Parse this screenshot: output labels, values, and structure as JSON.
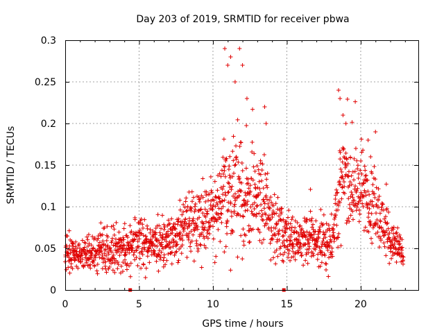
{
  "chart_data": {
    "type": "scatter",
    "title": "Day 203 of 2019, SRMTID for receiver pbwa",
    "xlabel": "GPS time / hours",
    "ylabel": "SRMTID / TECUs",
    "xlim": [
      0,
      23.9
    ],
    "ylim": [
      0,
      0.3
    ],
    "xticks": [
      0,
      5,
      10,
      15,
      20
    ],
    "yticks": [
      0,
      0.05,
      0.1,
      0.15,
      0.2,
      0.25,
      0.3
    ],
    "xtick_labels": [
      "0",
      "5",
      "10",
      "15",
      "20"
    ],
    "ytick_labels": [
      "0",
      "0.05",
      "0.1",
      "0.15",
      "0.2",
      "0.25",
      "0.3"
    ],
    "grid": true,
    "marker": "+",
    "color": "#e00000",
    "markers_on_axis": [
      4.4,
      14.8
    ],
    "envelope": {
      "x": [
        0,
        1,
        2,
        3,
        4,
        5,
        6,
        7,
        8,
        9,
        10,
        10.5,
        11,
        11.5,
        12,
        12.5,
        13,
        13.5,
        14,
        14.5,
        15,
        16,
        17,
        17.5,
        18,
        18.5,
        19,
        19.5,
        20,
        20.5,
        21,
        21.5,
        22,
        22.5,
        22.9
      ],
      "mean": [
        0.045,
        0.042,
        0.045,
        0.05,
        0.05,
        0.055,
        0.055,
        0.06,
        0.075,
        0.085,
        0.09,
        0.1,
        0.12,
        0.12,
        0.11,
        0.1,
        0.11,
        0.1,
        0.085,
        0.07,
        0.065,
        0.06,
        0.06,
        0.05,
        0.06,
        0.11,
        0.14,
        0.12,
        0.12,
        0.11,
        0.1,
        0.08,
        0.06,
        0.05,
        0.04
      ],
      "spread": [
        0.02,
        0.018,
        0.02,
        0.022,
        0.022,
        0.025,
        0.025,
        0.028,
        0.03,
        0.035,
        0.04,
        0.05,
        0.07,
        0.07,
        0.06,
        0.05,
        0.05,
        0.045,
        0.04,
        0.03,
        0.028,
        0.025,
        0.025,
        0.025,
        0.03,
        0.05,
        0.05,
        0.045,
        0.045,
        0.04,
        0.04,
        0.03,
        0.025,
        0.02,
        0.018
      ]
    },
    "peaks": {
      "x": [
        10.8,
        11,
        11.2,
        11.5,
        11.8,
        12,
        12.3,
        13.5,
        13.6,
        18.5,
        18.6,
        18.8,
        19,
        20.5,
        21
      ],
      "y": [
        0.29,
        0.27,
        0.28,
        0.25,
        0.29,
        0.27,
        0.23,
        0.22,
        0.2,
        0.24,
        0.23,
        0.21,
        0.2,
        0.18,
        0.19
      ]
    },
    "n_points": 1600
  }
}
